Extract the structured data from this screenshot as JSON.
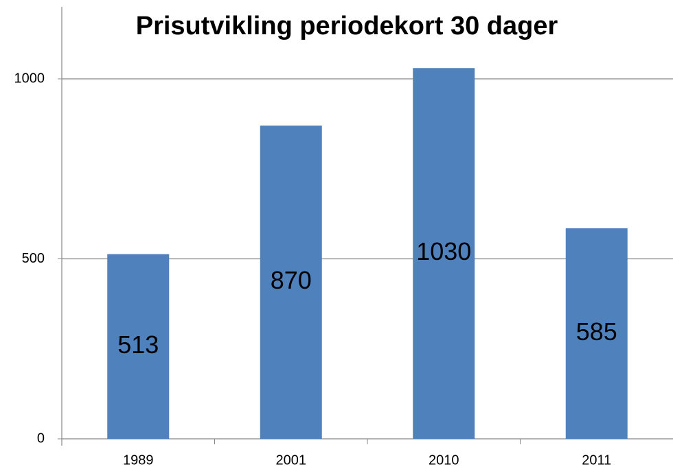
{
  "chart_data": {
    "type": "bar",
    "title": "Prisutvikling periodekort 30 dager",
    "categories": [
      "1989",
      "2001",
      "2010",
      "2011"
    ],
    "values": [
      513,
      870,
      1030,
      585
    ],
    "color": "#4f81bd",
    "ylim": [
      0,
      1200
    ],
    "yticks": [
      0,
      500,
      1000
    ],
    "grid": true
  }
}
